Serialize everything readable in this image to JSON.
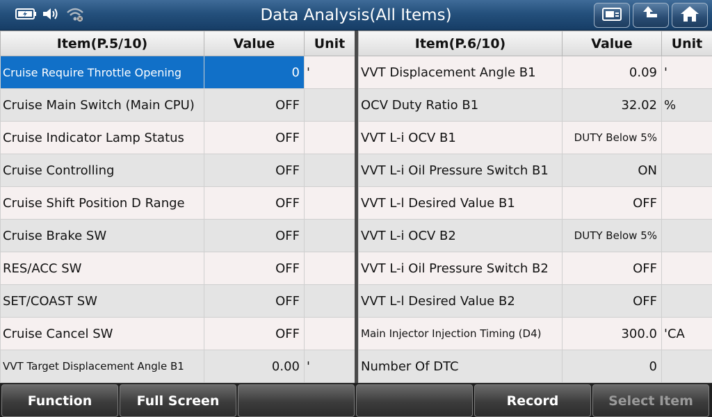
{
  "header": {
    "title": "Data Analysis(All Items)",
    "status_icons": [
      "battery-icon",
      "speaker-icon",
      "wifi-icon"
    ],
    "buttons": [
      "screenshot-icon",
      "back-icon",
      "home-icon"
    ]
  },
  "left_table": {
    "columns": [
      "Item(P.5/10)",
      "Value",
      "Unit"
    ],
    "rows": [
      {
        "item": "Cruise Require Throttle Opening",
        "value": "0",
        "unit": "'"
      },
      {
        "item": "Cruise Main Switch (Main CPU)",
        "value": "OFF",
        "unit": ""
      },
      {
        "item": "Cruise Indicator Lamp Status",
        "value": "OFF",
        "unit": ""
      },
      {
        "item": "Cruise Controlling",
        "value": "OFF",
        "unit": ""
      },
      {
        "item": "Cruise Shift Position D Range",
        "value": "OFF",
        "unit": ""
      },
      {
        "item": "Cruise Brake SW",
        "value": "OFF",
        "unit": ""
      },
      {
        "item": "RES/ACC SW",
        "value": "OFF",
        "unit": ""
      },
      {
        "item": "SET/COAST SW",
        "value": "OFF",
        "unit": ""
      },
      {
        "item": "Cruise Cancel SW",
        "value": "OFF",
        "unit": ""
      },
      {
        "item": "VVT Target Displacement Angle B1",
        "value": "0.00",
        "unit": "'"
      }
    ]
  },
  "right_table": {
    "columns": [
      "Item(P.6/10)",
      "Value",
      "Unit"
    ],
    "rows": [
      {
        "item": "VVT Displacement Angle B1",
        "value": "0.09",
        "unit": "'"
      },
      {
        "item": "OCV Duty Ratio B1",
        "value": "32.02",
        "unit": "%"
      },
      {
        "item": "VVT L-i OCV B1",
        "value": "DUTY Below 5%",
        "unit": ""
      },
      {
        "item": "VVT L-i Oil Pressure Switch B1",
        "value": "ON",
        "unit": ""
      },
      {
        "item": "VVT L-l Desired Value B1",
        "value": "OFF",
        "unit": ""
      },
      {
        "item": "VVT L-i OCV B2",
        "value": "DUTY Below 5%",
        "unit": ""
      },
      {
        "item": "VVT L-i Oil Pressure Switch B2",
        "value": "OFF",
        "unit": ""
      },
      {
        "item": "VVT L-l Desired Value B2",
        "value": "OFF",
        "unit": ""
      },
      {
        "item": "Main Injector Injection Timing (D4)",
        "value": "300.0",
        "unit": "'CA"
      },
      {
        "item": "Number Of DTC",
        "value": "0",
        "unit": ""
      }
    ]
  },
  "footer": {
    "buttons": [
      "Function",
      "Full Screen",
      "",
      "",
      "Record",
      "Select Item"
    ]
  },
  "colors": {
    "selected_row": "#1170c8",
    "title_bar": "#24507c"
  }
}
